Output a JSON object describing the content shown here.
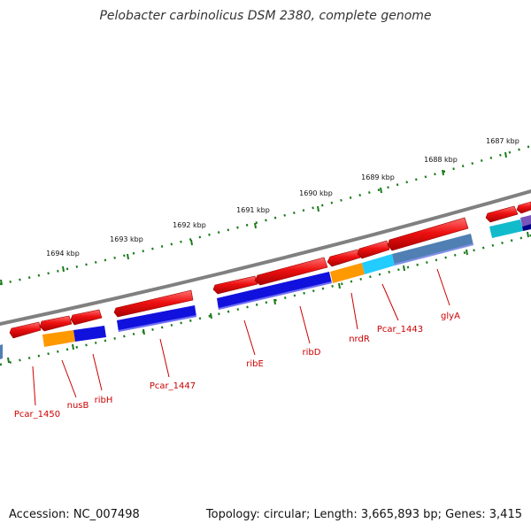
{
  "title": "Pelobacter carbinolicus DSM 2380, complete genome",
  "footer": {
    "accession": "Accession: NC_007498",
    "topology": "Topology: circular; Length: 3,665,893 bp; Genes: 3,415"
  },
  "ruler": {
    "labels": [
      "1687 kbp",
      "1688 kbp",
      "1689 kbp",
      "1690 kbp",
      "1691 kbp",
      "1692 kbp",
      "1693 kbp",
      "1694 kbp"
    ]
  },
  "gene_labels": [
    "Pcar_1450",
    "nusB",
    "ribH",
    "Pcar_1447",
    "ribE",
    "ribD",
    "nrdR",
    "Pcar_1443",
    "glyA"
  ],
  "colors": {
    "backbone": "#808080",
    "strand_gene": "#ee1111",
    "tick": "#1a7a1a",
    "label": "#cc0000",
    "blue": "#1111dd",
    "orange": "#ff9900",
    "cyan": "#22ccff",
    "steel": "#4f7fb3",
    "teal": "#11bbcc",
    "purple": "#7755bb",
    "navy": "#000088"
  }
}
